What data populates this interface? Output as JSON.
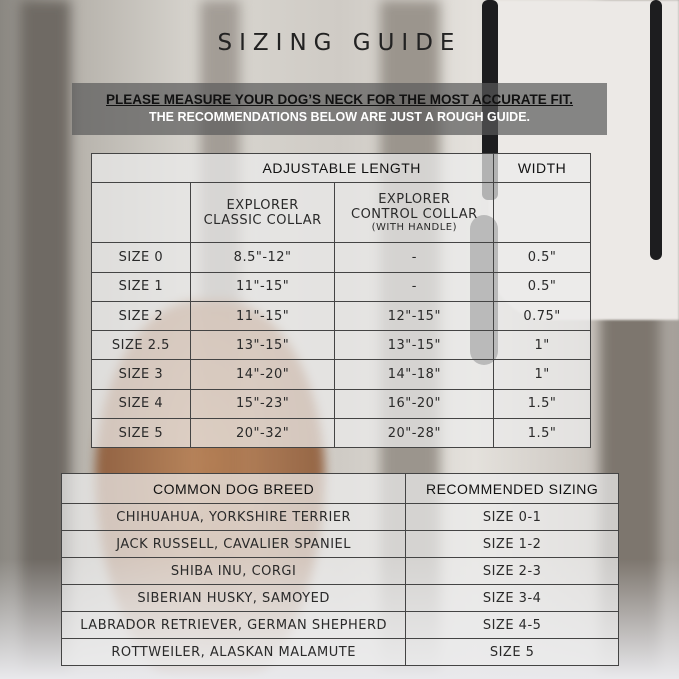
{
  "title": "SIZING GUIDE",
  "notice": {
    "line1": "PLEASE MEASURE YOUR DOG’S NECK FOR THE MOST ACCURATE FIT.",
    "line2": "THE RECOMMENDATIONS BELOW ARE JUST A ROUGH GUIDE."
  },
  "size_table": {
    "group_headers": {
      "length": "ADJUSTABLE LENGTH",
      "width": "WIDTH"
    },
    "col_classic": {
      "line1": "EXPLORER",
      "line2": "CLASSIC COLLAR"
    },
    "col_control": {
      "line1": "EXPLORER",
      "line2": "CONTROL COLLAR",
      "note": "(WITH HANDLE)"
    },
    "rows": [
      {
        "size": "SIZE 0",
        "classic": "8.5\"-12\"",
        "control": "-",
        "width": "0.5\""
      },
      {
        "size": "SIZE 1",
        "classic": "11\"-15\"",
        "control": "-",
        "width": "0.5\""
      },
      {
        "size": "SIZE 2",
        "classic": "11\"-15\"",
        "control": "12\"-15\"",
        "width": "0.75\""
      },
      {
        "size": "SIZE 2.5",
        "classic": "13\"-15\"",
        "control": "13\"-15\"",
        "width": "1\""
      },
      {
        "size": "SIZE 3",
        "classic": "14\"-20\"",
        "control": "14\"-18\"",
        "width": "1\""
      },
      {
        "size": "SIZE 4",
        "classic": "15\"-23\"",
        "control": "16\"-20\"",
        "width": "1.5\""
      },
      {
        "size": "SIZE 5",
        "classic": "20\"-32\"",
        "control": "20\"-28\"",
        "width": "1.5\""
      }
    ]
  },
  "breed_table": {
    "headers": {
      "breed": "COMMON DOG BREED",
      "sizing": "RECOMMENDED SIZING"
    },
    "rows": [
      {
        "breed": "CHIHUAHUA, YORKSHIRE TERRIER",
        "sizing": "SIZE 0-1"
      },
      {
        "breed": "JACK RUSSELL, CAVALIER SPANIEL",
        "sizing": "SIZE 1-2"
      },
      {
        "breed": "SHIBA INU, CORGI",
        "sizing": "SIZE 2-3"
      },
      {
        "breed": "SIBERIAN HUSKY, SAMOYED",
        "sizing": "SIZE 3-4"
      },
      {
        "breed": "LABRADOR RETRIEVER, GERMAN SHEPHERD",
        "sizing": "SIZE 4-5"
      },
      {
        "breed": "ROTTWEILER, ALASKAN MALAMUTE",
        "sizing": "SIZE 5"
      }
    ]
  }
}
